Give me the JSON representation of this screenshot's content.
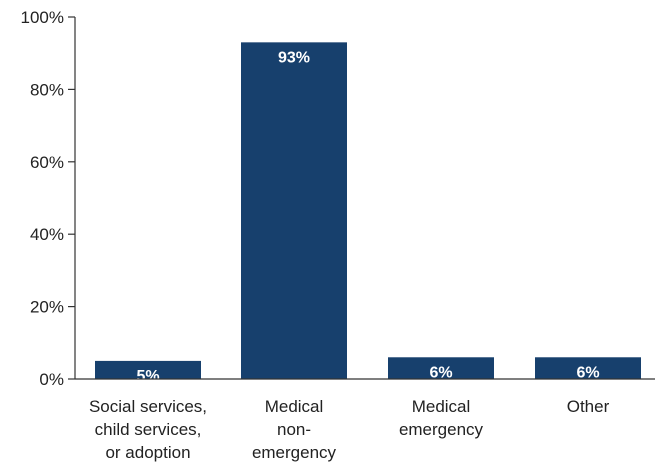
{
  "chart_data": {
    "type": "bar",
    "categories": [
      [
        "Social services,",
        "child services,",
        "or adoption"
      ],
      [
        "Medical",
        "non-",
        "emergency"
      ],
      [
        "Medical",
        "emergency"
      ],
      [
        "Other"
      ]
    ],
    "values": [
      5,
      93,
      6,
      6
    ],
    "data_labels": [
      "5%",
      "93%",
      "6%",
      "6%"
    ],
    "ylim": [
      0,
      100
    ],
    "yticks": [
      0,
      20,
      40,
      60,
      80,
      100
    ],
    "ytick_labels": [
      "0%",
      "20%",
      "40%",
      "60%",
      "80%",
      "100%"
    ],
    "bar_color": "#17406d",
    "grid": false,
    "legend": "none"
  }
}
